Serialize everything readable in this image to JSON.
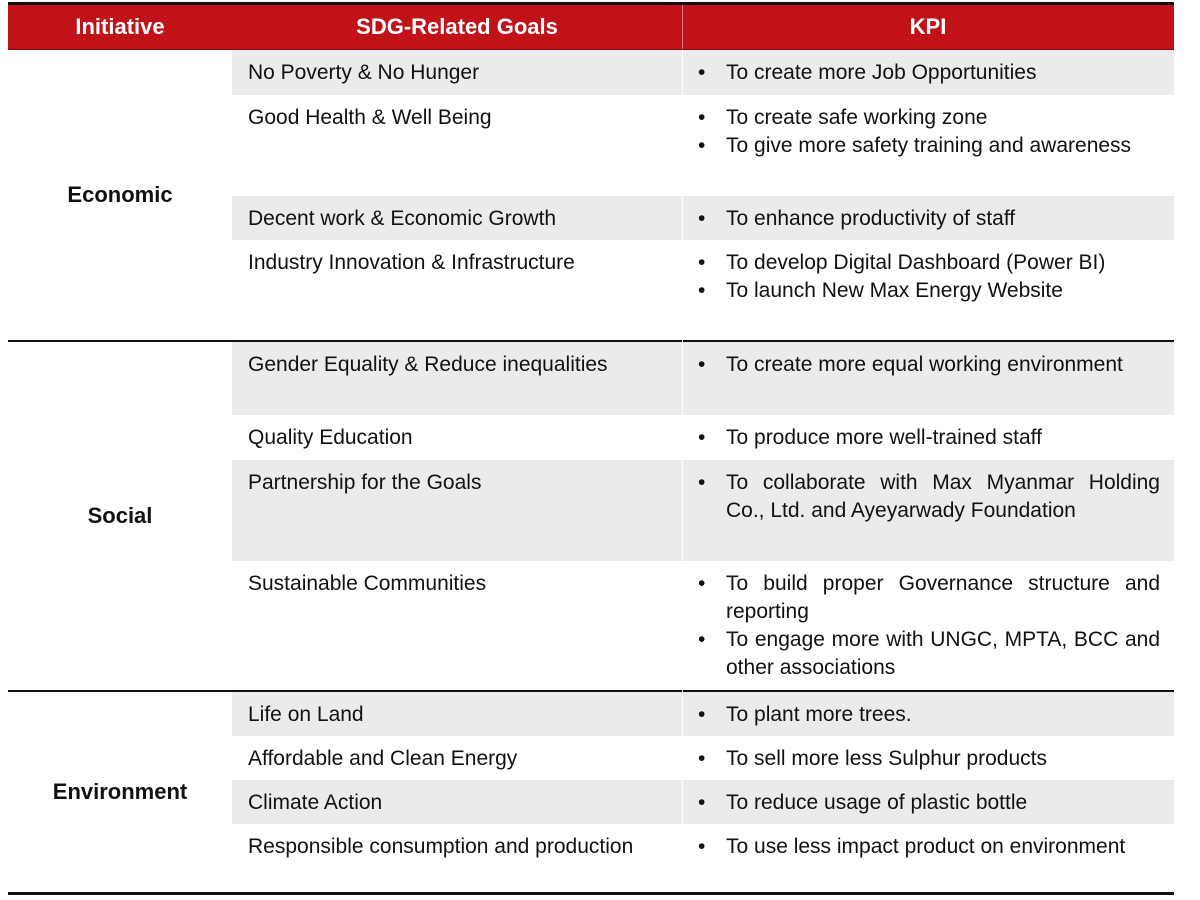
{
  "header": {
    "initiative": "Initiative",
    "goals": "SDG-Related Goals",
    "kpi": "KPI",
    "color": "#c1121a"
  },
  "groups": [
    {
      "name": "Economic",
      "rows": [
        {
          "goal": "No Poverty & No Hunger",
          "kpis": [
            "To create more Job Opportunities"
          ]
        },
        {
          "goal": "Good Health & Well Being",
          "kpis": [
            "To create safe working zone",
            "To give more safety training and awareness"
          ]
        },
        {
          "goal": "Decent work & Economic Growth",
          "kpis": [
            "To enhance productivity of staff"
          ]
        },
        {
          "goal": "Industry Innovation & Infrastructure",
          "kpis": [
            "To develop Digital Dashboard (Power BI)",
            "To launch New Max Energy Website"
          ]
        }
      ]
    },
    {
      "name": "Social",
      "rows": [
        {
          "goal": "Gender Equality & Reduce inequalities",
          "kpis": [
            "To create more equal working environment"
          ]
        },
        {
          "goal": "Quality Education",
          "kpis": [
            "To produce more well-trained staff"
          ]
        },
        {
          "goal": "Partnership for the Goals",
          "kpis": [
            "To collaborate with Max Myanmar Holding Co., Ltd. and Ayeyarwady Foundation"
          ]
        },
        {
          "goal": "Sustainable Communities",
          "kpis": [
            "To build proper Governance structure and reporting",
            "To engage more with UNGC, MPTA, BCC and other associations"
          ]
        }
      ]
    },
    {
      "name": "Environment",
      "rows": [
        {
          "goal": "Life on Land",
          "kpis": [
            "To plant more trees."
          ]
        },
        {
          "goal": "Affordable and Clean Energy",
          "kpis": [
            "To sell more less Sulphur products"
          ]
        },
        {
          "goal": "Climate Action",
          "kpis": [
            "To reduce usage of plastic bottle"
          ]
        },
        {
          "goal": "Responsible consumption and production",
          "kpis": [
            "To use less impact product on environment"
          ]
        }
      ]
    }
  ]
}
